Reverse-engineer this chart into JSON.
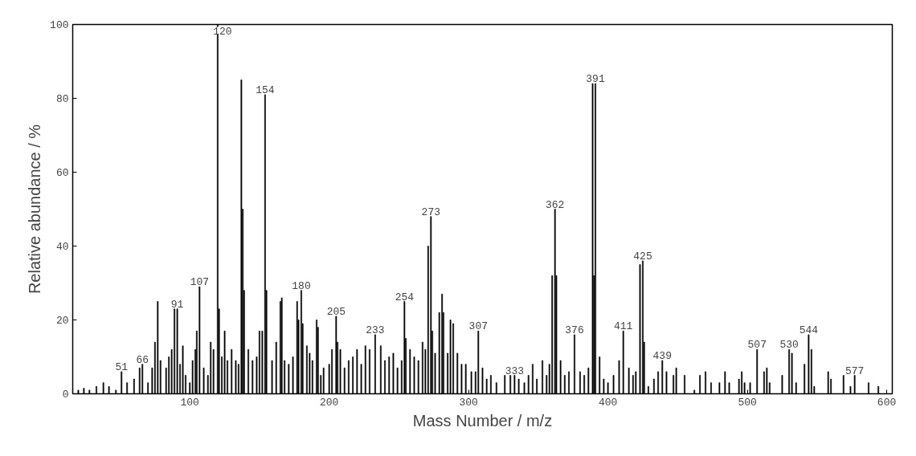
{
  "chart_data": {
    "type": "bar",
    "xlabel": "Mass Number / m/z",
    "ylabel": "Relative abundance / %",
    "x": [
      20,
      24,
      28,
      33,
      38,
      42,
      47,
      51,
      55,
      60,
      64,
      66,
      70,
      73,
      75,
      77,
      79,
      83,
      85,
      87,
      89,
      91,
      93,
      95,
      97,
      100,
      102,
      104,
      105,
      107,
      110,
      113,
      115,
      117,
      120,
      121,
      123,
      125,
      127,
      130,
      133,
      135,
      137,
      138,
      139,
      142,
      145,
      148,
      150,
      152,
      154,
      155,
      159,
      162,
      165,
      166,
      168,
      171,
      174,
      177,
      178,
      180,
      181,
      184,
      186,
      188,
      191,
      192,
      194,
      196,
      200,
      202,
      205,
      206,
      208,
      211,
      214,
      217,
      220,
      223,
      226,
      229,
      233,
      237,
      240,
      243,
      246,
      249,
      252,
      254,
      255,
      258,
      261,
      264,
      267,
      269,
      271,
      273,
      274,
      276,
      279,
      281,
      282,
      285,
      287,
      289,
      292,
      295,
      298,
      302,
      305,
      307,
      310,
      313,
      316,
      320,
      326,
      330,
      333,
      336,
      340,
      343,
      346,
      349,
      353,
      356,
      358,
      360,
      362,
      363,
      366,
      369,
      372,
      376,
      380,
      383,
      386,
      389,
      390,
      391,
      394,
      397,
      400,
      404,
      408,
      411,
      415,
      418,
      420,
      423,
      425,
      426,
      429,
      433,
      436,
      439,
      442,
      447,
      449,
      455,
      462,
      466,
      470,
      474,
      480,
      484,
      487,
      494,
      496,
      498,
      502,
      507,
      512,
      514,
      516,
      525,
      530,
      532,
      535,
      541,
      544,
      546,
      548,
      558,
      560,
      569,
      574,
      577,
      587,
      594
    ],
    "values": [
      1,
      1.5,
      1,
      2,
      3,
      2,
      1,
      6,
      3,
      4,
      7,
      8,
      3,
      7,
      14,
      25,
      9,
      7,
      10,
      12,
      23,
      23,
      8,
      13,
      5,
      3,
      9,
      12,
      17,
      29,
      7,
      5,
      14,
      12,
      100,
      23,
      10,
      17,
      9,
      12,
      9,
      8,
      85,
      50,
      28,
      12,
      9,
      10,
      17,
      17,
      81,
      28,
      9,
      14,
      25,
      26,
      9,
      8,
      10,
      25,
      20,
      28,
      19,
      13,
      11,
      9,
      20,
      18,
      5,
      7,
      8,
      12,
      21,
      14,
      12,
      7,
      9,
      10,
      12,
      8,
      13,
      12,
      16,
      13,
      9,
      10,
      11,
      7,
      9,
      25,
      15,
      12,
      10,
      9,
      14,
      12,
      40,
      48,
      17,
      11,
      22,
      27,
      22,
      11,
      20,
      19,
      11,
      8,
      8,
      6,
      6,
      17,
      7,
      4,
      5,
      3,
      5,
      5,
      5,
      4,
      3,
      5,
      8,
      4,
      9,
      5,
      8,
      32,
      50,
      32,
      9,
      5,
      6,
      16,
      6,
      5,
      7,
      84,
      32,
      84,
      10,
      4,
      3,
      5,
      9,
      17,
      7,
      5,
      6,
      35,
      36,
      14,
      2,
      4,
      6,
      9,
      6,
      5,
      7,
      5,
      1,
      5,
      6,
      3,
      3,
      6,
      3,
      4,
      6,
      3,
      3,
      12,
      6,
      7,
      3,
      5,
      12,
      11,
      3,
      8,
      16,
      12,
      2,
      6,
      4,
      5,
      2,
      5,
      3,
      2
    ],
    "color": "#000000",
    "xlim": [
      16,
      604
    ],
    "xticks": [
      100,
      200,
      300,
      400,
      500,
      600
    ],
    "ylim": [
      0,
      100
    ],
    "yticks": [
      0,
      20,
      40,
      60,
      80,
      100
    ],
    "grid": false,
    "annotations": [
      {
        "text": "51",
        "x": 51,
        "y": 6
      },
      {
        "text": "66",
        "x": 66,
        "y": 8
      },
      {
        "text": "91",
        "x": 91,
        "y": 23
      },
      {
        "text": "107",
        "x": 107,
        "y": 29
      },
      {
        "text": "120",
        "x": 120,
        "y": 100
      },
      {
        "text": "154",
        "x": 154,
        "y": 81
      },
      {
        "text": "180",
        "x": 180,
        "y": 28
      },
      {
        "text": "205",
        "x": 205,
        "y": 21
      },
      {
        "text": "233",
        "x": 233,
        "y": 16
      },
      {
        "text": "254",
        "x": 254,
        "y": 25
      },
      {
        "text": "273",
        "x": 273,
        "y": 48
      },
      {
        "text": "307",
        "x": 307,
        "y": 17
      },
      {
        "text": "333",
        "x": 333,
        "y": 5
      },
      {
        "text": "362",
        "x": 362,
        "y": 50
      },
      {
        "text": "376",
        "x": 376,
        "y": 16
      },
      {
        "text": "391",
        "x": 391,
        "y": 84
      },
      {
        "text": "411",
        "x": 411,
        "y": 17
      },
      {
        "text": "425",
        "x": 425,
        "y": 36
      },
      {
        "text": "439",
        "x": 439,
        "y": 9
      },
      {
        "text": "507",
        "x": 507,
        "y": 12
      },
      {
        "text": "530",
        "x": 530,
        "y": 12
      },
      {
        "text": "544",
        "x": 544,
        "y": 16
      },
      {
        "text": "577",
        "x": 577,
        "y": 5
      }
    ]
  }
}
